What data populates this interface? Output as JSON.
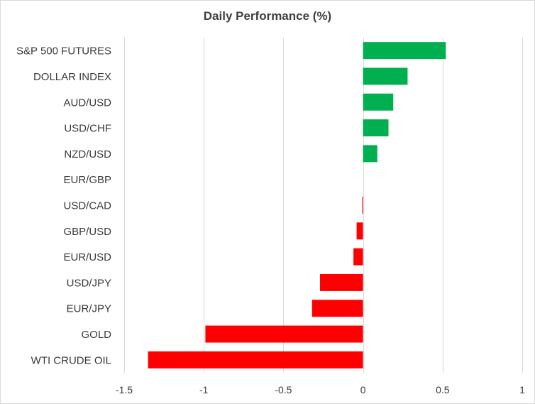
{
  "chart_data": {
    "type": "bar",
    "orientation": "horizontal",
    "title": "Daily Performance (%)",
    "categories": [
      "S&P 500 FUTURES",
      "DOLLAR INDEX",
      "AUD/USD",
      "USD/CHF",
      "NZD/USD",
      "EUR/GBP",
      "USD/CAD",
      "GBP/USD",
      "EUR/USD",
      "USD/JPY",
      "EUR/JPY",
      "GOLD",
      "WTI CRUDE OIL"
    ],
    "values": [
      0.52,
      0.28,
      0.19,
      0.16,
      0.09,
      0.0,
      -0.005,
      -0.04,
      -0.06,
      -0.27,
      -0.32,
      -0.99,
      -1.35
    ],
    "xlim": [
      -1.5,
      1
    ],
    "xticks": [
      -1.5,
      -1,
      -0.5,
      0,
      0.5,
      1
    ],
    "xtick_labels": [
      "-1.5",
      "-1",
      "-0.5",
      "0",
      "0.5",
      "1"
    ],
    "xlabel": "",
    "ylabel": "",
    "grid": true,
    "legend": "none",
    "colors": {
      "positive": "#00b050",
      "negative": "#ff0000",
      "grid": "#d9d9d9",
      "text": "#404040"
    }
  }
}
